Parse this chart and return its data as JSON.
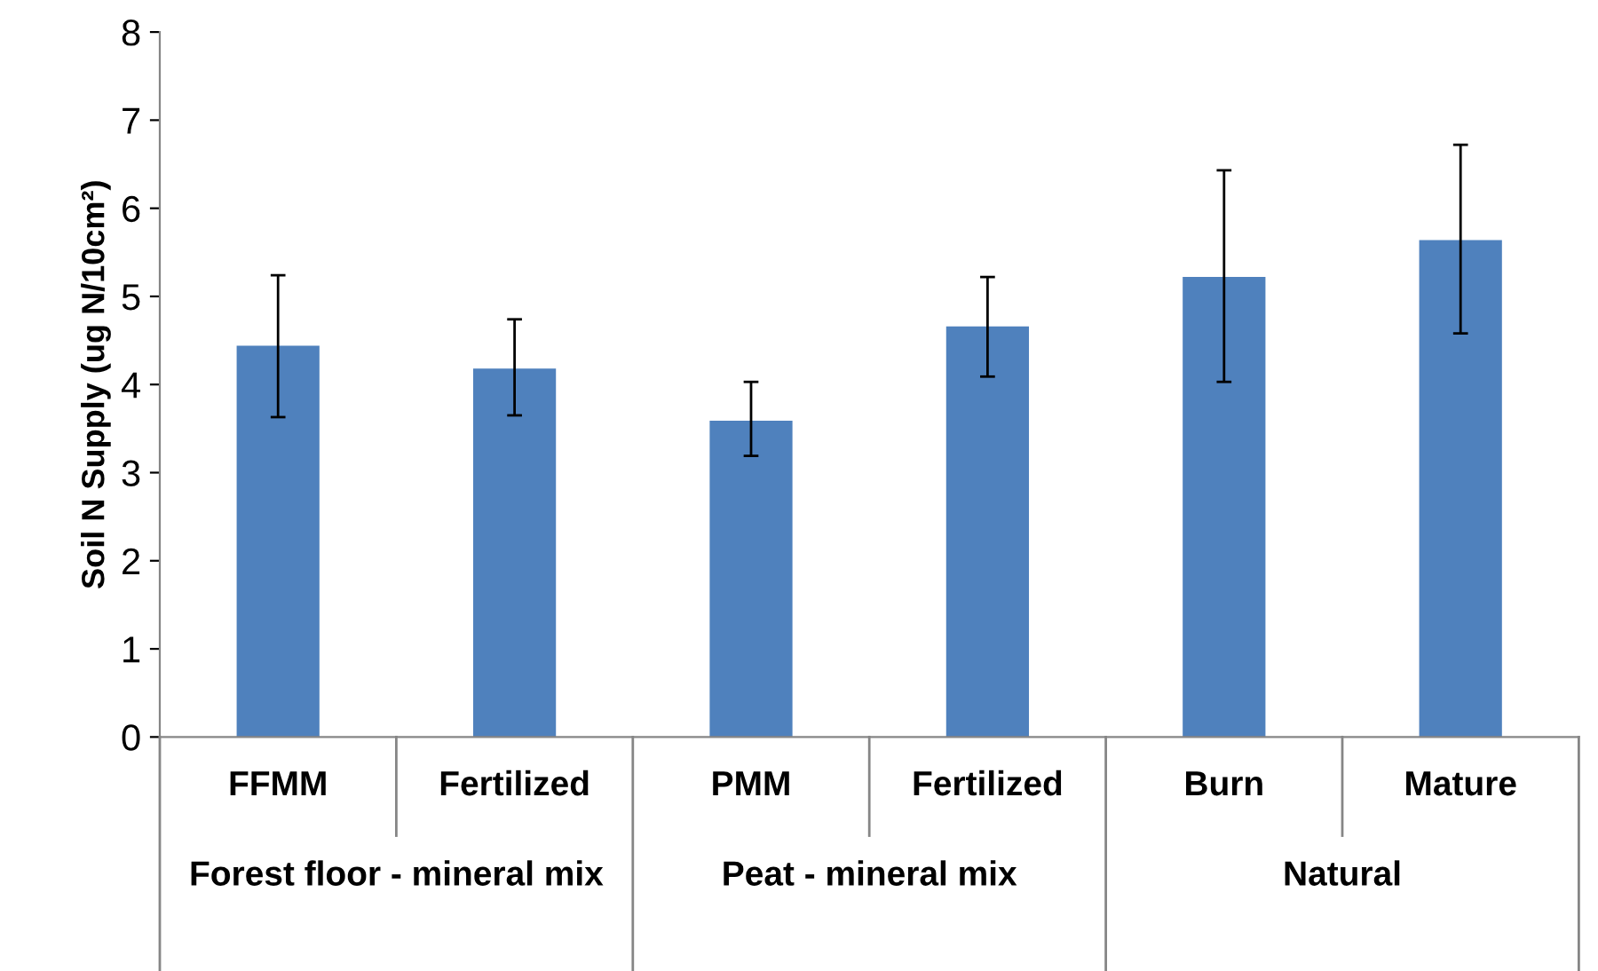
{
  "chart_data": {
    "type": "bar",
    "ylabel": "Soil N Supply (ug N/10cm²)",
    "categories": [
      "FFMM",
      "Fertilized",
      "PMM",
      "Fertilized",
      "Burn",
      "Mature"
    ],
    "values": [
      4.44,
      4.18,
      3.59,
      4.66,
      5.22,
      5.64
    ],
    "errors": [
      [
        3.63,
        5.24
      ],
      [
        3.65,
        4.74
      ],
      [
        3.19,
        4.03
      ],
      [
        4.09,
        5.22
      ],
      [
        4.03,
        6.43
      ],
      [
        4.58,
        6.72
      ]
    ],
    "color": "#4f81bd",
    "ylim": [
      0,
      8
    ],
    "yticks": [
      0,
      1,
      2,
      3,
      4,
      5,
      6,
      7,
      8
    ],
    "grid": false,
    "annotations": [
      "Forest floor - mineral mix",
      "Peat - mineral mix",
      "Natural"
    ]
  }
}
